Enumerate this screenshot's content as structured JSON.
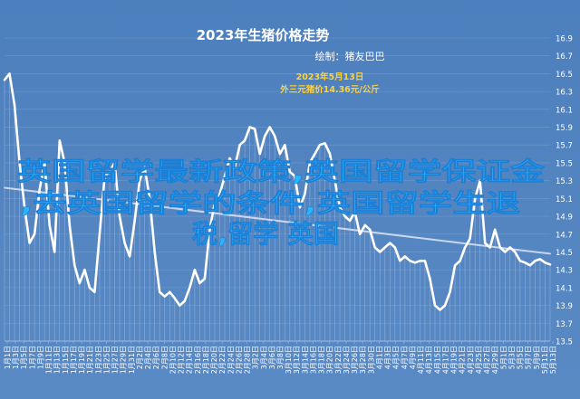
{
  "chart_data": {
    "type": "line",
    "title": "2023年生猪价格走势",
    "subtitle": "绘制：猪友巴巴",
    "annotation_date": "2023年5月13日",
    "annotation_text": "外三元猪价14.36元/公斤",
    "overlay_text": [
      "英国留学最新政策,英国留学保证金",
      ",去英国留学的条件,英国留学生退",
      "税,留学 英国"
    ],
    "ylim": [
      13.5,
      16.9
    ],
    "y_ticks": [
      "16.9",
      "16.7",
      "16.5",
      "16.3",
      "16.1",
      "15.9",
      "15.7",
      "15.5",
      "15.3",
      "15.1",
      "14.9",
      "14.7",
      "14.5",
      "14.3",
      "14.1",
      "13.9",
      "13.7",
      "13.5"
    ],
    "x_ticks": [
      "1月1日",
      "1月3日",
      "1月5日",
      "1月7日",
      "1月9日",
      "1月11日",
      "1月13日",
      "1月15日",
      "1月17日",
      "1月19日",
      "1月21日",
      "1月23日",
      "1月25日",
      "1月27日",
      "1月29日",
      "1月31日",
      "2月2日",
      "2月4日",
      "2月6日",
      "2月8日",
      "2月10日",
      "2月12日",
      "2月14日",
      "2月16日",
      "2月18日",
      "2月20日",
      "2月22日",
      "2月24日",
      "2月26日",
      "2月28日",
      "3月2日",
      "3月4日",
      "3月6日",
      "3月8日",
      "3月10日",
      "3月12日",
      "3月14日",
      "3月16日",
      "3月18日",
      "3月20日",
      "3月22日",
      "3月24日",
      "3月26日",
      "3月28日",
      "3月30日",
      "4月1日",
      "4月3日",
      "4月5日",
      "4月7日",
      "4月9日",
      "4月11日",
      "4月13日",
      "4月15日",
      "4月17日",
      "4月19日",
      "4月21日",
      "4月23日",
      "4月25日",
      "4月27日",
      "4月29日",
      "5月1日",
      "5月3日",
      "5月5日",
      "5月7日",
      "5月9日",
      "5月11日",
      "5月13日"
    ],
    "series": [
      {
        "values": [
          16.43,
          16.5,
          16.15,
          15.5,
          15.0,
          14.6,
          14.7,
          15.2,
          15.5,
          14.8,
          14.5,
          15.75,
          15.5,
          14.8,
          14.35,
          14.15,
          14.3,
          14.1,
          14.05,
          14.7,
          15.35,
          15.4,
          15.5,
          14.9,
          14.6,
          14.45,
          14.85,
          15.3,
          15.45,
          15.1,
          14.5,
          14.05,
          14.0,
          14.05,
          13.98,
          13.9,
          13.95,
          14.1,
          14.3,
          14.15,
          14.2,
          14.75,
          15.05,
          15.15,
          15.35,
          15.55,
          15.45,
          15.7,
          15.75,
          15.9,
          15.88,
          15.6,
          15.8,
          15.9,
          15.8,
          15.6,
          15.7,
          15.4,
          15.35,
          15.0,
          15.15,
          15.5,
          15.6,
          15.7,
          15.72,
          15.6,
          15.3,
          15.0,
          14.9,
          14.85,
          14.95,
          14.7,
          14.8,
          14.75,
          14.55,
          14.5,
          14.55,
          14.6,
          14.55,
          14.4,
          14.45,
          14.4,
          14.38,
          14.4,
          14.4,
          14.2,
          13.9,
          13.85,
          13.9,
          14.05,
          14.35,
          14.4,
          14.55,
          14.65,
          15.1,
          15.3,
          14.6,
          14.55,
          14.75,
          14.55,
          14.5,
          14.55,
          14.5,
          14.4,
          14.38,
          14.35,
          14.4,
          14.42,
          14.38,
          14.36
        ]
      }
    ],
    "trend": {
      "start": 15.22,
      "end": 14.48
    }
  }
}
